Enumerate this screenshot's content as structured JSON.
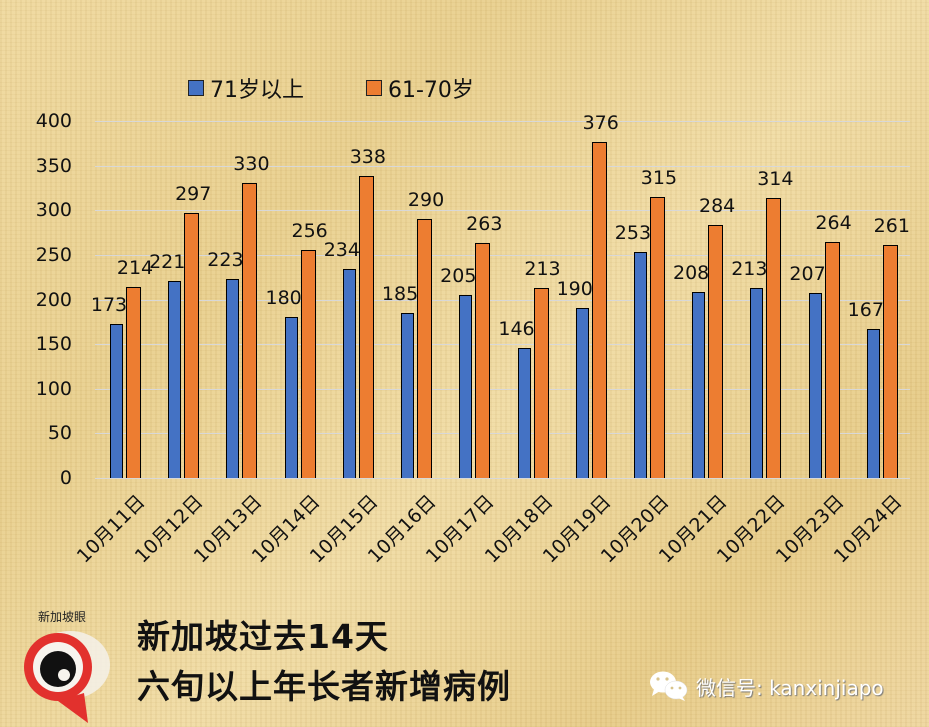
{
  "legend": [
    {
      "label": "71岁以上",
      "color": "#4472C4"
    },
    {
      "label": "61-70岁",
      "color": "#ED7D31"
    }
  ],
  "y_ticks": [
    "400",
    "350",
    "300",
    "250",
    "200",
    "150",
    "100",
    "50",
    "0"
  ],
  "footer": {
    "logo_text": "新加坡眼",
    "title_line1": "新加坡过去14天",
    "title_line2": "六旬以上年长者新增病例",
    "wechat_label": "微信号: kanxinjiapo"
  },
  "chart_data": {
    "type": "bar",
    "title": "新加坡过去14天 六旬以上年长者新增病例",
    "xlabel": "",
    "ylabel": "",
    "ylim": [
      0,
      400
    ],
    "grid": true,
    "legend_position": "top",
    "categories": [
      "10月11日",
      "10月12日",
      "10月13日",
      "10月14日",
      "10月15日",
      "10月16日",
      "10月17日",
      "10月18日",
      "10月19日",
      "10月20日",
      "10月21日",
      "10月22日",
      "10月23日",
      "10月24日"
    ],
    "series": [
      {
        "name": "71岁以上",
        "color": "#4472C4",
        "values": [
          173,
          221,
          223,
          180,
          234,
          185,
          205,
          146,
          190,
          253,
          208,
          213,
          207,
          167
        ]
      },
      {
        "name": "61-70岁",
        "color": "#ED7D31",
        "values": [
          214,
          297,
          330,
          256,
          338,
          290,
          263,
          213,
          376,
          315,
          284,
          314,
          264,
          261
        ]
      }
    ]
  }
}
